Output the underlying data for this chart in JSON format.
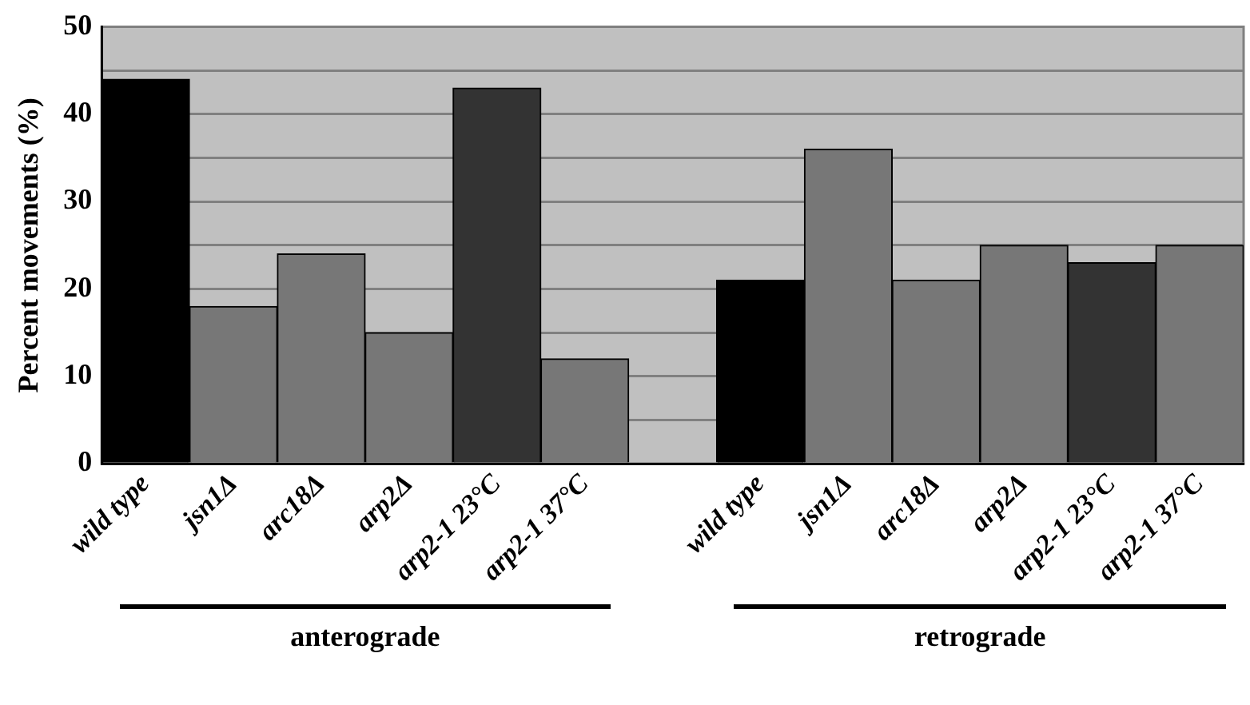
{
  "chart_data": {
    "type": "bar",
    "ylabel": "Percent movements (%)",
    "categories": [
      "wild type",
      "jsn1Δ",
      "arc18Δ",
      "arp2Δ",
      "arp2-1 23°C",
      "arp2-1 37°C",
      null,
      "wild type",
      "jsn1Δ",
      "arc18Δ",
      "arp2Δ",
      "arp2-1 23°C",
      "arp2-1 37°C"
    ],
    "values": [
      44,
      18,
      24,
      15,
      43,
      12,
      null,
      21,
      36,
      21,
      25,
      23,
      25
    ],
    "colors": [
      "#000000",
      "#777777",
      "#777777",
      "#777777",
      "#333333",
      "#777777",
      "#777777",
      "#000000",
      "#777777",
      "#777777",
      "#777777",
      "#333333",
      "#777777"
    ],
    "ylim": [
      0,
      50
    ],
    "yticks": [
      0,
      {
        "value": 5,
        "label": null
      },
      10,
      {
        "value": 15,
        "label": null
      },
      20,
      {
        "value": 25,
        "label": null
      },
      30,
      {
        "value": 35,
        "label": null
      },
      40,
      {
        "value": 45,
        "label": null
      },
      50
    ],
    "grid": "y",
    "legend": false,
    "annotations": [
      "anterograde",
      "retrograde"
    ]
  }
}
